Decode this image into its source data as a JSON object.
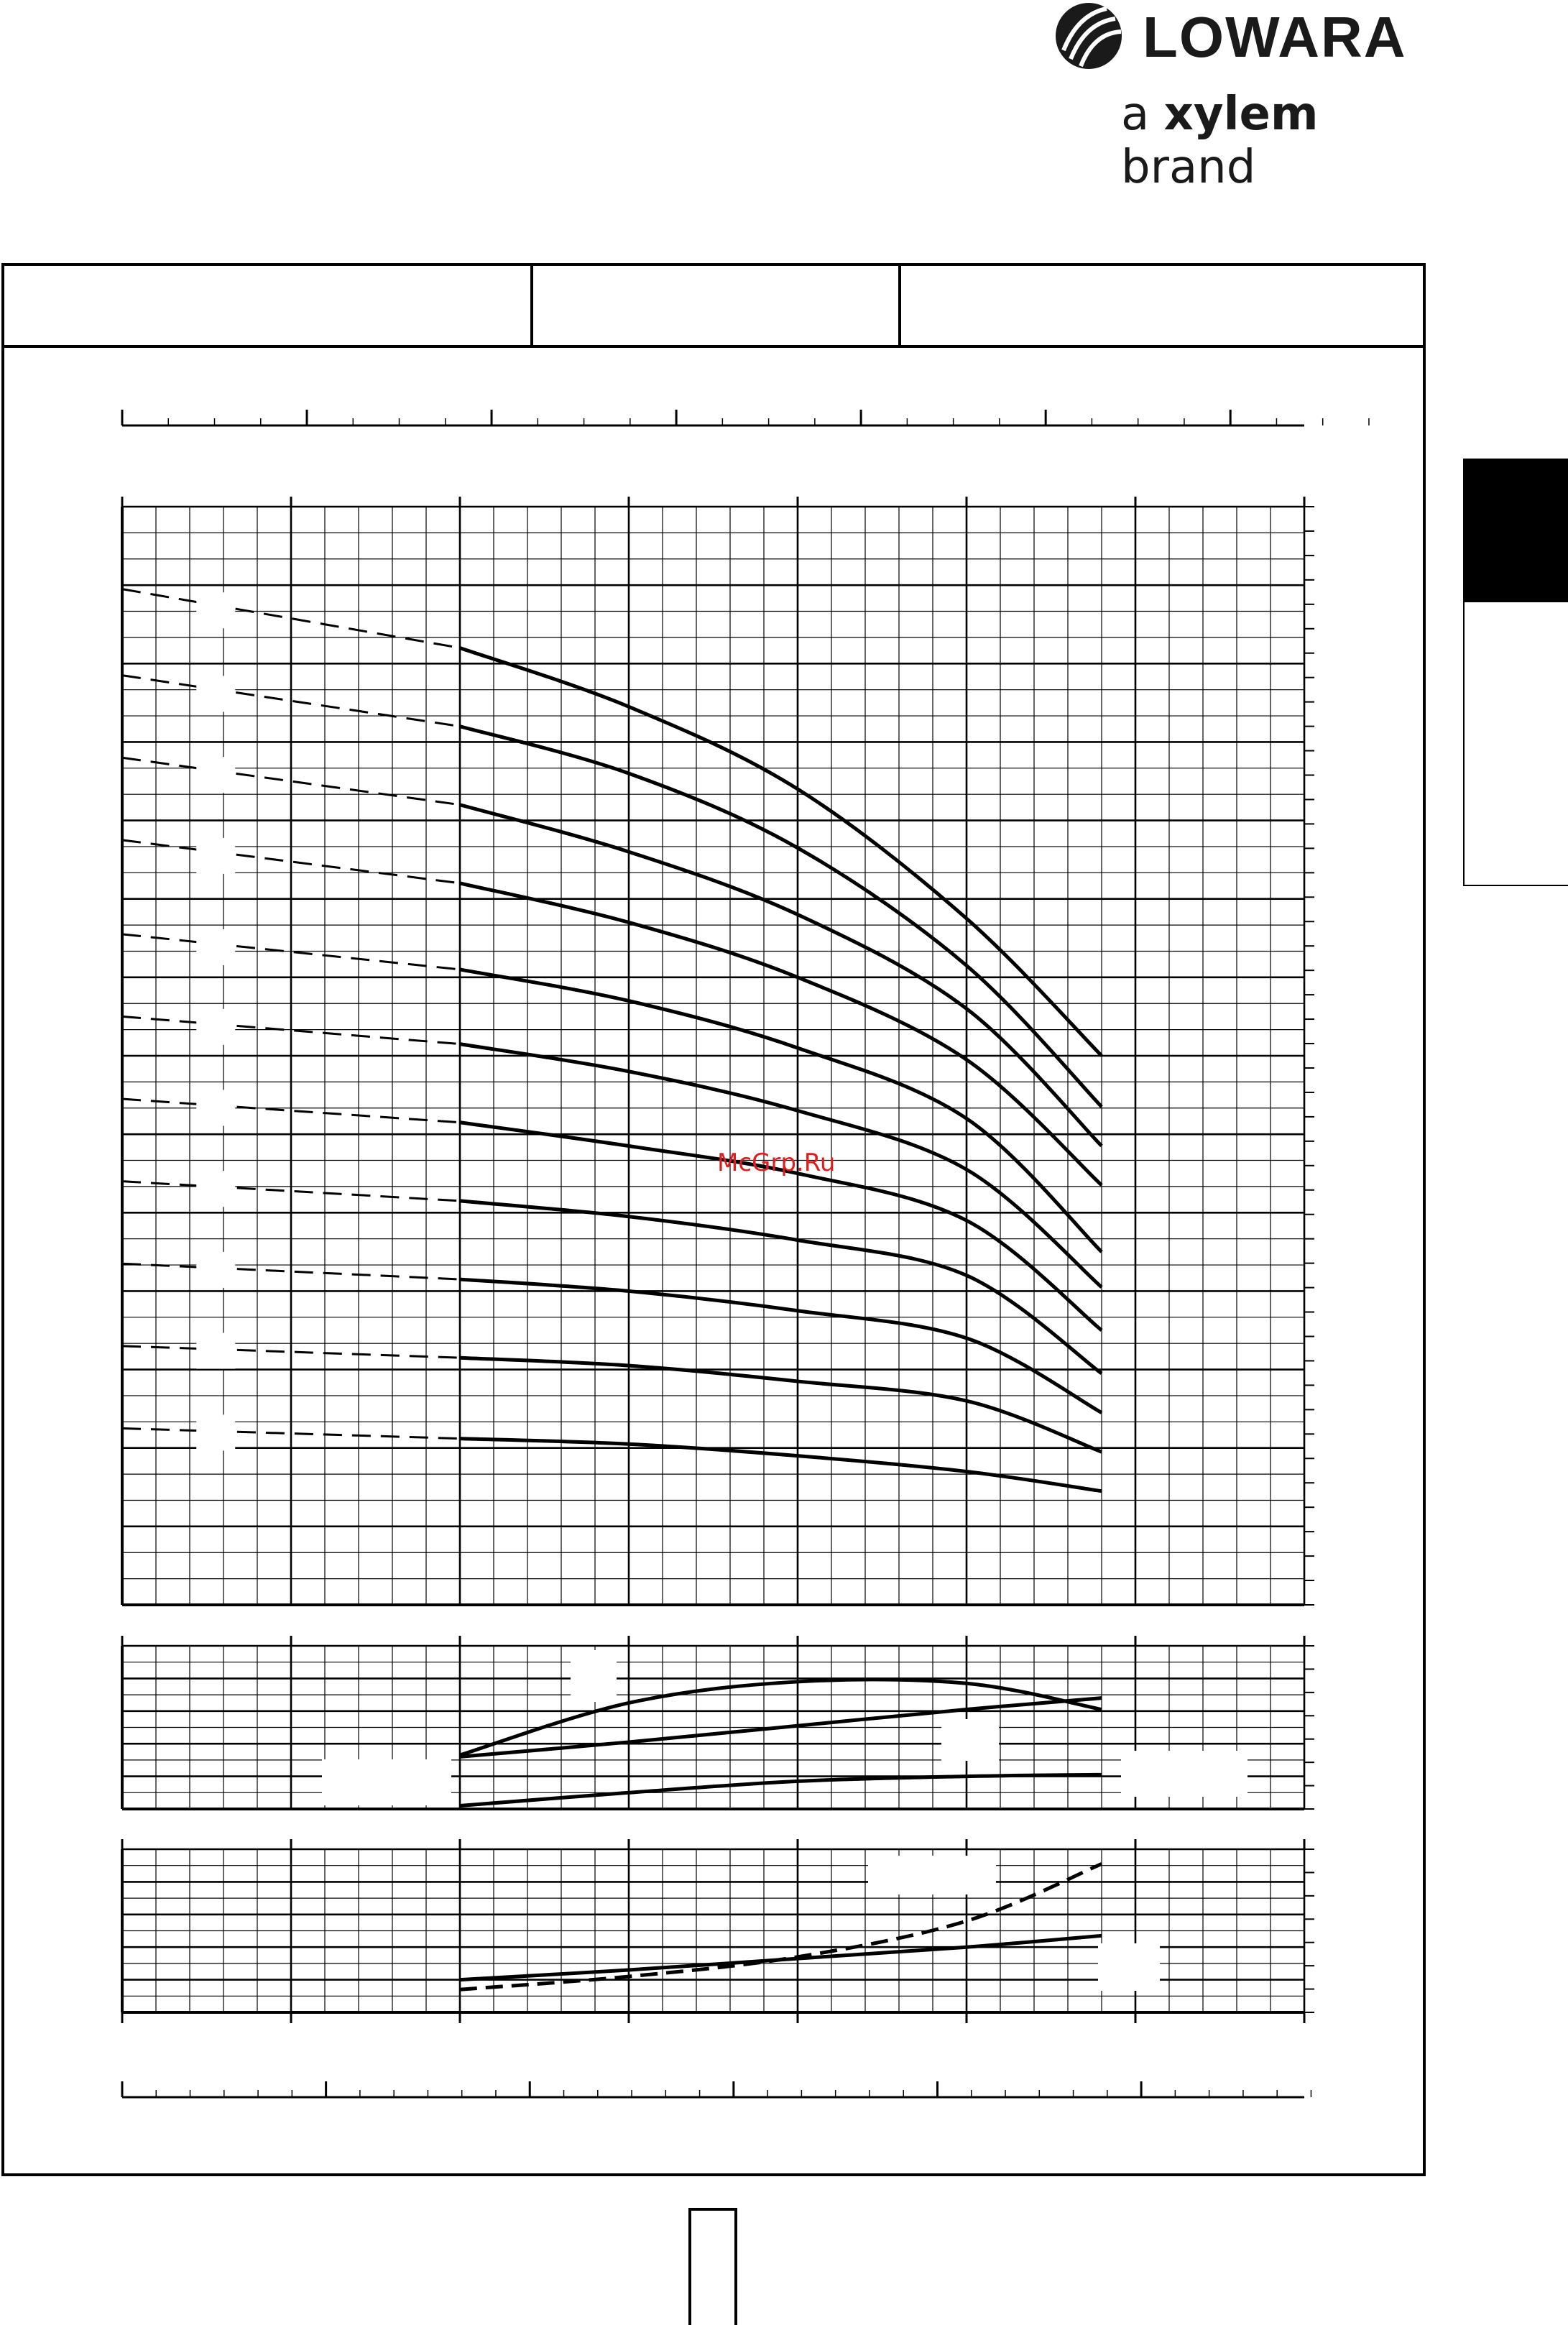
{
  "header": {
    "brand": "LOWARA",
    "tagline_prefix": "a ",
    "tagline_bold": "xylem",
    "tagline_suffix": " brand"
  },
  "watermark": {
    "text": "McGrp.Ru"
  },
  "colors": {
    "ink": "#000000",
    "watermark": "#e01d1d",
    "background": "#ffffff"
  },
  "chart_data": [
    {
      "type": "line",
      "panel": "head",
      "x_range": [
        0,
        7
      ],
      "y_range": [
        0,
        14
      ],
      "grid": true,
      "series": [
        {
          "dashed_x": [
            0,
            2
          ],
          "solid_x": [
            2,
            3,
            4,
            5,
            5.8
          ],
          "dashed_y": [
            12.95,
            12.2
          ],
          "solid_y": [
            12.2,
            11.45,
            10.4,
            8.75,
            7.0
          ]
        },
        {
          "dashed_x": [
            0,
            2
          ],
          "solid_x": [
            2,
            3,
            4,
            5,
            5.8
          ],
          "dashed_y": [
            11.85,
            11.2
          ],
          "solid_y": [
            11.2,
            10.6,
            9.65,
            8.15,
            6.35
          ]
        },
        {
          "dashed_x": [
            0,
            2
          ],
          "solid_x": [
            2,
            3,
            4,
            5,
            5.8
          ],
          "dashed_y": [
            10.8,
            10.2
          ],
          "solid_y": [
            10.2,
            9.6,
            8.8,
            7.6,
            5.85
          ]
        },
        {
          "dashed_x": [
            0,
            2
          ],
          "solid_x": [
            2,
            3,
            4,
            5,
            5.8
          ],
          "dashed_y": [
            9.75,
            9.2
          ],
          "solid_y": [
            9.2,
            8.7,
            8.0,
            6.95,
            5.35
          ]
        },
        {
          "dashed_x": [
            0,
            2
          ],
          "solid_x": [
            2,
            3,
            4,
            5,
            5.8
          ],
          "dashed_y": [
            8.55,
            8.1
          ],
          "solid_y": [
            8.1,
            7.7,
            7.1,
            6.2,
            4.5
          ]
        },
        {
          "dashed_x": [
            0,
            2
          ],
          "solid_x": [
            2,
            3,
            4,
            5,
            5.8
          ],
          "dashed_y": [
            7.5,
            7.15
          ],
          "solid_y": [
            7.15,
            6.8,
            6.3,
            5.55,
            4.05
          ]
        },
        {
          "dashed_x": [
            0,
            2
          ],
          "solid_x": [
            2,
            3,
            4,
            5,
            5.8
          ],
          "dashed_y": [
            6.45,
            6.15
          ],
          "solid_y": [
            6.15,
            5.85,
            5.5,
            4.9,
            3.5
          ]
        },
        {
          "dashed_x": [
            0,
            2
          ],
          "solid_x": [
            2,
            3,
            4,
            5,
            5.8
          ],
          "dashed_y": [
            5.4,
            5.15
          ],
          "solid_y": [
            5.15,
            4.95,
            4.65,
            4.2,
            2.95
          ]
        },
        {
          "dashed_x": [
            0,
            2
          ],
          "solid_x": [
            2,
            3,
            4,
            5,
            5.8
          ],
          "dashed_y": [
            4.35,
            4.15
          ],
          "solid_y": [
            4.15,
            4.0,
            3.75,
            3.4,
            2.45
          ]
        },
        {
          "dashed_x": [
            0,
            2
          ],
          "solid_x": [
            2,
            3,
            4,
            5,
            5.8
          ],
          "dashed_y": [
            3.3,
            3.15
          ],
          "solid_y": [
            3.15,
            3.05,
            2.85,
            2.6,
            1.95
          ]
        },
        {
          "dashed_x": [
            0,
            2
          ],
          "solid_x": [
            2,
            3,
            4,
            5,
            5.8
          ],
          "dashed_y": [
            2.25,
            2.12
          ],
          "solid_y": [
            2.12,
            2.05,
            1.9,
            1.7,
            1.45
          ]
        }
      ]
    },
    {
      "type": "line",
      "panel": "power-efficiency",
      "x_range": [
        0,
        7
      ],
      "y_range": [
        0,
        5
      ],
      "grid": true,
      "series": [
        {
          "style": "solid",
          "x": [
            2,
            3,
            4,
            5,
            5.8
          ],
          "y": [
            1.65,
            3.25,
            3.9,
            3.85,
            3.05
          ]
        },
        {
          "style": "solid",
          "x": [
            2,
            3,
            4,
            5,
            5.8
          ],
          "y": [
            1.6,
            2.05,
            2.55,
            3.05,
            3.4
          ]
        },
        {
          "style": "solid",
          "x": [
            2,
            3,
            4,
            5,
            5.8
          ],
          "y": [
            0.1,
            0.5,
            0.85,
            1.0,
            1.05
          ]
        }
      ]
    },
    {
      "type": "line",
      "panel": "npsh-power",
      "x_range": [
        0,
        7
      ],
      "y_range": [
        0,
        5
      ],
      "grid": true,
      "series": [
        {
          "style": "solid",
          "x": [
            2,
            3,
            4,
            5,
            5.8
          ],
          "y": [
            1.0,
            1.3,
            1.65,
            2.0,
            2.35
          ]
        },
        {
          "style": "dashed",
          "x": [
            2,
            3,
            4,
            5,
            5.8
          ],
          "y": [
            0.7,
            1.1,
            1.7,
            2.8,
            4.55
          ]
        }
      ]
    }
  ]
}
